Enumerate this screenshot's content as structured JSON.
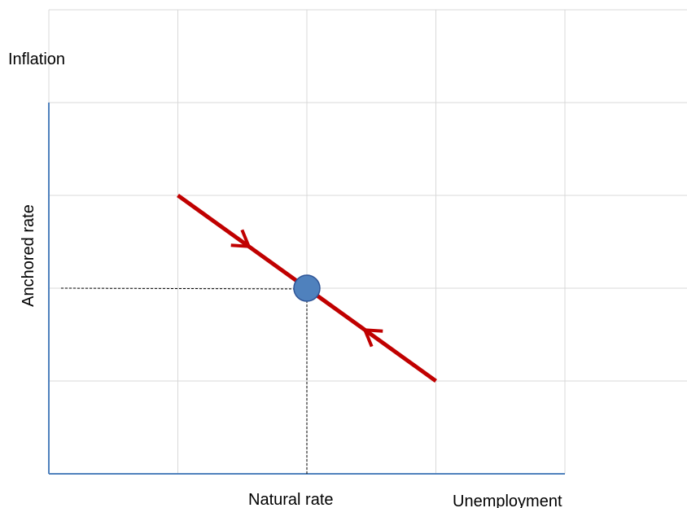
{
  "chart_data": {
    "type": "line",
    "title": "",
    "xlabel": "Unemployment",
    "ylabel": "Inflation",
    "grid": true,
    "annotations": {
      "x_marker_label": "Natural rate",
      "y_marker_label": "Anchored rate"
    },
    "series": [
      {
        "values_x": [
          1,
          3
        ],
        "values_y": [
          3,
          1
        ],
        "color": "#c00000",
        "arrows": "toward-equilibrium"
      }
    ],
    "equilibrium": {
      "x": 2,
      "y": 2,
      "color": "#4f81bd"
    },
    "xlim": [
      0,
      5
    ],
    "ylim": [
      0,
      4.85
    ]
  }
}
